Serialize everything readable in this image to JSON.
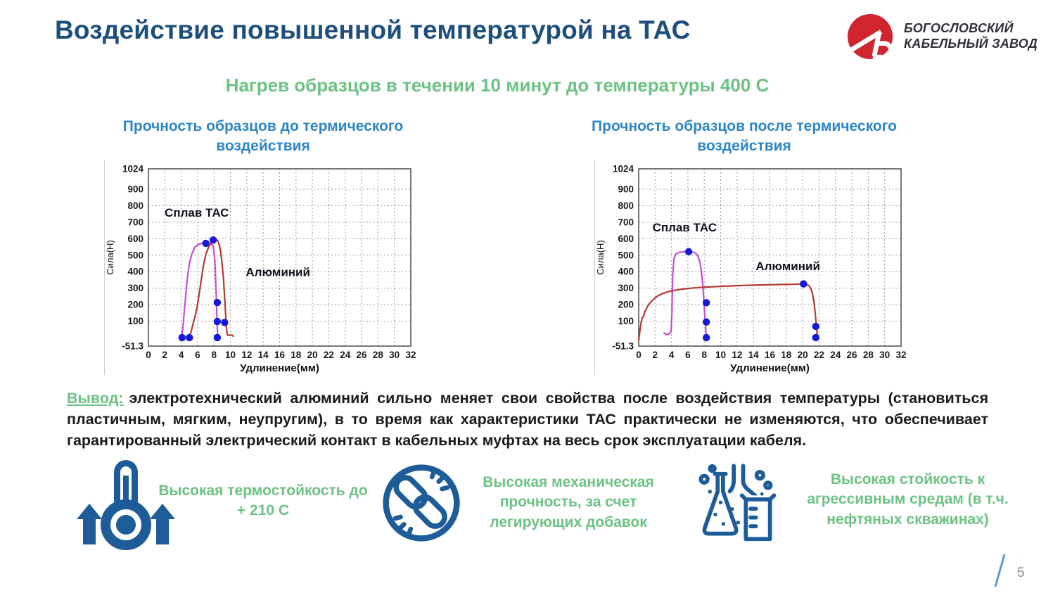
{
  "slide": {
    "title": "Воздействие повышенной температурой на ТАС",
    "subtitle": "Нагрев образцов в течении 10 минут до температуры 400 С",
    "page_number": "5"
  },
  "logo": {
    "company_line1": "БОГОСЛОВСКИЙ",
    "company_line2": "КАБЕЛЬНЫЙ ЗАВОД"
  },
  "conclusion": {
    "label": "Вывод:",
    "text": "электротехнический алюминий сильно меняет свои свойства после воздействия температуры (становиться пластичным, мягким, неупругим), в то время как характеристики ТАС практически не изменяются, что обеспечивает гарантированный электрический контакт в кабельных муфтах на весь срок эксплуатации кабеля."
  },
  "features": [
    {
      "icon": "thermometer-up-icon",
      "text": "Высокая термостойкость до + 210 С"
    },
    {
      "icon": "broken-chain-icon",
      "text": "Высокая механическая прочность, за счет легирующих добавок"
    },
    {
      "icon": "chemistry-flasks-icon",
      "text": "Высокая стойкость к агрессивным средам (в т.ч. нефтяных скважинах)"
    }
  ],
  "colors": {
    "title_navy": "#1d4e7c",
    "chart_title_blue": "#2e86c8",
    "accent_green": "#6cc283",
    "logo_red": "#d0252e",
    "icon_blue": "#1e5c99",
    "series_tac_magenta": "#c44fd0",
    "series_aluminium_red": "#b23a31",
    "marker_blue": "#1619d8",
    "slash_blue": "#5b9bd5",
    "page_number_gray": "#8a8a8a"
  },
  "chart_data": [
    {
      "type": "line",
      "title": "Прочность образцов до термического воздействия",
      "xlabel": "Удлинение(мм)",
      "ylabel": "Сила(Н)",
      "xlim": [
        0,
        32
      ],
      "ylim": [
        -51.3,
        1024
      ],
      "x_ticks": [
        0,
        2,
        4,
        6,
        8,
        10,
        12,
        14,
        16,
        18,
        20,
        22,
        24,
        26,
        28,
        30,
        32
      ],
      "y_ticks": [
        1024,
        900,
        800,
        700,
        600,
        500,
        400,
        300,
        200,
        100,
        -51.3
      ],
      "grid": true,
      "legend_position": "none",
      "series": [
        {
          "name": "Сплав ТАС",
          "color": "#c44fd0",
          "points": [
            [
              4.05,
              0
            ],
            [
              4.2,
              60
            ],
            [
              4.45,
              200
            ],
            [
              4.7,
              340
            ],
            [
              5.0,
              450
            ],
            [
              5.35,
              515
            ],
            [
              5.7,
              550
            ],
            [
              6.1,
              566
            ],
            [
              6.6,
              573
            ],
            [
              7.0,
              576
            ],
            [
              7.5,
              572
            ],
            [
              7.9,
              558
            ],
            [
              8.1,
              470
            ],
            [
              8.25,
              290
            ],
            [
              8.35,
              130
            ],
            [
              8.45,
              0
            ]
          ]
        },
        {
          "name": "Алюминий",
          "color": "#b23a31",
          "points": [
            [
              5.0,
              0
            ],
            [
              5.25,
              45
            ],
            [
              5.5,
              95
            ],
            [
              5.8,
              150
            ],
            [
              6.1,
              235
            ],
            [
              6.4,
              335
            ],
            [
              6.7,
              435
            ],
            [
              7.0,
              505
            ],
            [
              7.35,
              550
            ],
            [
              7.7,
              578
            ],
            [
              8.0,
              593
            ],
            [
              8.25,
              598
            ],
            [
              8.5,
              584
            ],
            [
              8.75,
              540
            ],
            [
              8.95,
              465
            ],
            [
              9.15,
              360
            ],
            [
              9.3,
              240
            ],
            [
              9.45,
              115
            ],
            [
              9.55,
              40
            ],
            [
              9.65,
              15
            ],
            [
              10.2,
              15
            ],
            [
              10.35,
              8
            ]
          ]
        }
      ],
      "markers": {
        "color": "#1619d8",
        "points": [
          [
            4.1,
            0
          ],
          [
            5.0,
            0
          ],
          [
            7.0,
            572
          ],
          [
            7.9,
            592
          ],
          [
            8.4,
            213
          ],
          [
            8.4,
            98
          ],
          [
            9.3,
            92
          ],
          [
            8.4,
            0
          ]
        ]
      },
      "annotations": [
        {
          "text": "Сплав ТАС",
          "x": 5.9,
          "y": 755
        },
        {
          "text": "Алюминий",
          "x": 15.8,
          "y": 395
        }
      ]
    },
    {
      "type": "line",
      "title": "Прочность образцов после термического воздействия",
      "xlabel": "Удлинение(мм)",
      "ylabel": "Сила(Н)",
      "xlim": [
        0,
        32
      ],
      "ylim": [
        -51.3,
        1024
      ],
      "x_ticks": [
        0,
        2,
        4,
        6,
        8,
        10,
        12,
        14,
        16,
        18,
        20,
        22,
        24,
        26,
        28,
        30,
        32
      ],
      "y_ticks": [
        1024,
        900,
        800,
        700,
        600,
        500,
        400,
        300,
        200,
        100,
        -51.3
      ],
      "grid": true,
      "legend_position": "none",
      "series": [
        {
          "name": "Сплав ТАС",
          "color": "#c44fd0",
          "points": [
            [
              3.1,
              28
            ],
            [
              3.4,
              18
            ],
            [
              3.7,
              22
            ],
            [
              3.95,
              35
            ],
            [
              4.05,
              150
            ],
            [
              4.15,
              380
            ],
            [
              4.3,
              480
            ],
            [
              4.55,
              508
            ],
            [
              4.9,
              517
            ],
            [
              5.5,
              521
            ],
            [
              6.0,
              524
            ],
            [
              6.5,
              521
            ],
            [
              6.9,
              514
            ],
            [
              7.2,
              498
            ],
            [
              7.5,
              452
            ],
            [
              7.75,
              358
            ],
            [
              7.95,
              228
            ],
            [
              8.1,
              108
            ],
            [
              8.2,
              35
            ],
            [
              8.28,
              0
            ]
          ]
        },
        {
          "name": "Алюминий",
          "color": "#b23a31",
          "points": [
            [
              0,
              -15
            ],
            [
              0.15,
              40
            ],
            [
              0.3,
              95
            ],
            [
              0.45,
              122
            ],
            [
              0.6,
              128
            ],
            [
              0.75,
              158
            ],
            [
              0.95,
              176
            ],
            [
              1.15,
              196
            ],
            [
              1.45,
              215
            ],
            [
              1.85,
              235
            ],
            [
              2.35,
              254
            ],
            [
              2.95,
              268
            ],
            [
              3.6,
              279
            ],
            [
              4.4,
              287
            ],
            [
              5.4,
              295
            ],
            [
              6.6,
              301
            ],
            [
              8,
              306
            ],
            [
              9.5,
              310
            ],
            [
              11,
              313
            ],
            [
              13,
              317
            ],
            [
              15,
              320
            ],
            [
              17,
              322
            ],
            [
              19,
              324
            ],
            [
              20.1,
              326
            ],
            [
              20.5,
              323
            ],
            [
              20.8,
              314
            ],
            [
              21.0,
              297
            ],
            [
              21.2,
              265
            ],
            [
              21.4,
              208
            ],
            [
              21.55,
              138
            ],
            [
              21.7,
              58
            ],
            [
              21.8,
              4
            ]
          ]
        }
      ],
      "markers": {
        "color": "#1619d8",
        "points": [
          [
            6.1,
            521
          ],
          [
            8.25,
            212
          ],
          [
            8.25,
            95
          ],
          [
            8.25,
            0
          ],
          [
            20.1,
            326
          ],
          [
            21.6,
            68
          ],
          [
            21.6,
            0
          ]
        ]
      },
      "annotations": [
        {
          "text": "Сплав ТАС",
          "x": 5.6,
          "y": 665
        },
        {
          "text": "Алюминий",
          "x": 18.2,
          "y": 430
        }
      ]
    }
  ]
}
